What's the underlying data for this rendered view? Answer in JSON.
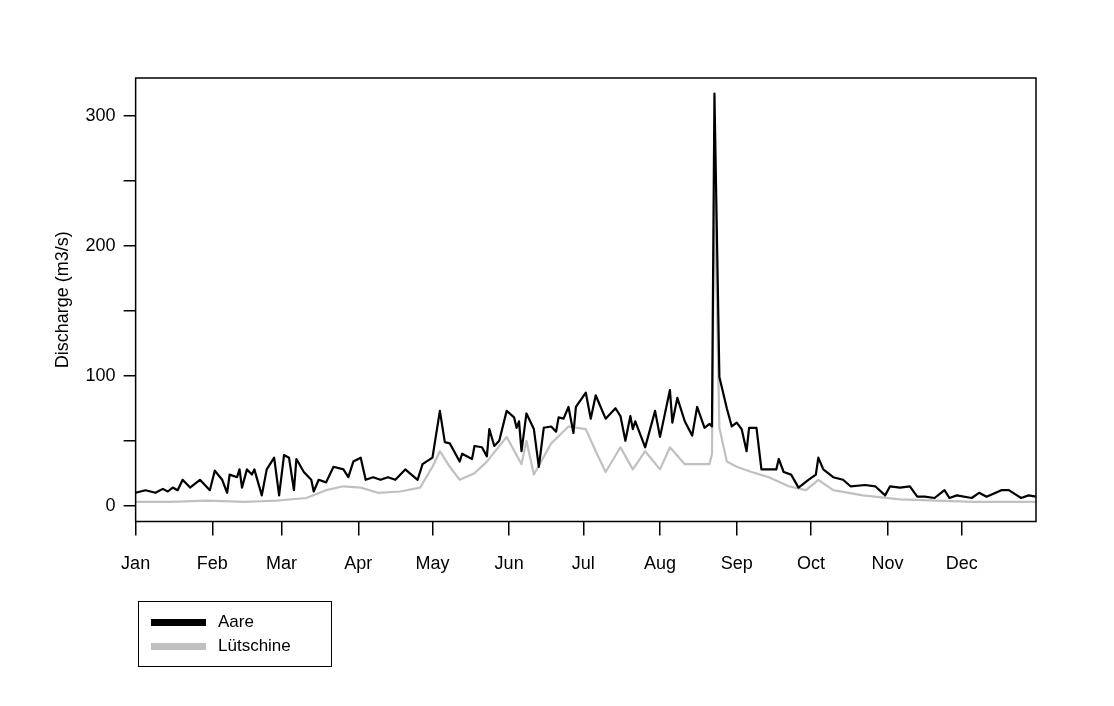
{
  "chart_data": {
    "type": "line",
    "ylabel": "Discharge (m3/s)",
    "xlim": [
      "--01-01",
      "--12-31"
    ],
    "ylim": [
      -12,
      329
    ],
    "xticks": [
      {
        "value": "--01-01",
        "label": "Jan"
      },
      {
        "value": "--02-01",
        "label": "Feb"
      },
      {
        "value": "--03-01",
        "label": "Mar"
      },
      {
        "value": "--04-01",
        "label": "Apr"
      },
      {
        "value": "--05-01",
        "label": "May"
      },
      {
        "value": "--06-01",
        "label": "Jun"
      },
      {
        "value": "--07-01",
        "label": "Jul"
      },
      {
        "value": "--08-01",
        "label": "Aug"
      },
      {
        "value": "--09-01",
        "label": "Sep"
      },
      {
        "value": "--10-01",
        "label": "Oct"
      },
      {
        "value": "--11-01",
        "label": "Nov"
      },
      {
        "value": "--12-01",
        "label": "Dec"
      }
    ],
    "yticks": [
      0,
      {
        "value": 50,
        "label": null
      },
      100,
      {
        "value": 150,
        "label": null
      },
      200,
      {
        "value": 250,
        "label": null
      },
      300
    ],
    "legend": "bottom left",
    "marker": "none",
    "line_style": "solid",
    "series": [
      {
        "name": "Aare",
        "color": "#000000",
        "x": [
          "--01-01",
          "--01-05",
          "--01-09",
          "--01-12",
          "--01-14",
          "--01-16",
          "--01-18",
          "--01-20",
          "--01-23",
          "--01-27",
          "--01-31",
          "--02-02",
          "--02-05",
          "--02-07",
          "--02-08",
          "--02-11",
          "--02-12",
          "--02-13",
          "--02-15",
          "--02-17",
          "--02-18",
          "--02-21",
          "--02-23",
          "--02-26",
          "--02-28",
          "--03-02",
          "--03-04",
          "--03-06",
          "--03-07",
          "--03-10",
          "--03-13",
          "--03-14",
          "--03-16",
          "--03-19",
          "--03-22",
          "--03-26",
          "--03-28",
          "--03-30",
          "--04-02",
          "--04-04",
          "--04-07",
          "--04-10",
          "--04-13",
          "--04-16",
          "--04-20",
          "--04-25",
          "--04-27",
          "--05-01",
          "--05-04",
          "--05-06",
          "--05-08",
          "--05-12",
          "--05-13",
          "--05-17",
          "--05-18",
          "--05-21",
          "--05-23",
          "--05-24",
          "--05-26",
          "--05-28",
          "--05-31",
          "--06-03",
          "--06-04",
          "--06-05",
          "--06-06",
          "--06-08",
          "--06-11",
          "--06-13",
          "--06-15",
          "--06-18",
          "--06-20",
          "--06-21",
          "--06-23",
          "--06-25",
          "--06-27",
          "--06-28",
          "--07-02",
          "--07-04",
          "--07-06",
          "--07-08",
          "--07-10",
          "--07-14",
          "--07-16",
          "--07-18",
          "--07-20",
          "--07-21",
          "--07-22",
          "--07-26",
          "--07-30",
          "--08-01",
          "--08-05",
          "--08-06",
          "--08-08",
          "--08-11",
          "--08-14",
          "--08-16",
          "--08-19",
          "--08-21",
          "--08-22",
          "--08-23",
          "--08-25",
          "--08-28",
          "--08-30",
          "--09-01",
          "--09-03",
          "--09-05",
          "--09-06",
          "--09-09",
          "--09-11",
          "--09-14",
          "--09-17",
          "--09-18",
          "--09-20",
          "--09-23",
          "--09-26",
          "--09-30",
          "--10-03",
          "--10-04",
          "--10-06",
          "--10-10",
          "--10-14",
          "--10-17",
          "--10-23",
          "--10-27",
          "--10-31",
          "--11-02",
          "--11-06",
          "--11-10",
          "--11-13",
          "--11-16",
          "--11-20",
          "--11-24",
          "--11-26",
          "--11-29",
          "--12-05",
          "--12-08",
          "--12-11",
          "--12-17",
          "--12-20",
          "--12-25",
          "--12-28",
          "--12-31"
        ],
        "values": [
          10,
          12,
          10,
          13,
          11,
          14,
          12,
          20,
          14,
          20,
          12,
          27,
          20,
          10,
          24,
          22,
          28,
          14,
          28,
          24,
          28,
          8,
          28,
          37,
          8,
          39,
          37,
          12,
          36,
          26,
          20,
          11,
          20,
          18,
          30,
          28,
          22,
          34,
          37,
          20,
          22,
          20,
          22,
          20,
          28,
          20,
          32,
          37,
          73,
          49,
          48,
          34,
          40,
          36,
          46,
          45,
          38,
          59,
          46,
          50,
          73,
          68,
          60,
          65,
          42,
          71,
          59,
          30,
          60,
          61,
          57,
          68,
          67,
          76,
          56,
          76,
          87,
          67,
          85,
          76,
          67,
          75,
          69,
          50,
          69,
          59,
          65,
          45,
          73,
          53,
          89,
          64,
          83,
          65,
          54,
          76,
          60,
          63,
          61,
          317,
          99,
          75,
          61,
          64,
          59,
          42,
          60,
          60,
          28,
          28,
          28,
          36,
          26,
          24,
          14,
          20,
          24,
          37,
          28,
          22,
          20,
          15,
          16,
          15,
          8,
          15,
          14,
          15,
          7,
          7,
          6,
          12,
          6,
          8,
          6,
          10,
          7,
          12,
          12,
          6,
          8,
          7
        ]
      },
      {
        "name": "Lütschine",
        "color": "#c0c0c0",
        "x": [
          "--01-01",
          "--01-15",
          "--01-30",
          "--02-14",
          "--02-27",
          "--03-11",
          "--03-19",
          "--03-26",
          "--04-02",
          "--04-09",
          "--04-18",
          "--04-26",
          "--05-01",
          "--05-04",
          "--05-08",
          "--05-12",
          "--05-18",
          "--05-23",
          "--05-31",
          "--06-06",
          "--06-08",
          "--06-11",
          "--06-18",
          "--06-25",
          "--07-02",
          "--07-06",
          "--07-10",
          "--07-16",
          "--07-21",
          "--07-26",
          "--08-01",
          "--08-05",
          "--08-11",
          "--08-16",
          "--08-21",
          "--08-22",
          "--08-23",
          "--08-25",
          "--08-28",
          "--09-01",
          "--09-07",
          "--09-14",
          "--09-22",
          "--09-29",
          "--10-04",
          "--10-10",
          "--10-22",
          "--11-06",
          "--11-21",
          "--12-06",
          "--12-31"
        ],
        "values": [
          3,
          3,
          4,
          3,
          4,
          6,
          12,
          15,
          14,
          10,
          11,
          14,
          30,
          42,
          30,
          20,
          25,
          34,
          53,
          32,
          50,
          24,
          48,
          61,
          59,
          42,
          26,
          45,
          28,
          42,
          28,
          45,
          32,
          32,
          32,
          40,
          250,
          60,
          34,
          30,
          26,
          22,
          15,
          12,
          20,
          12,
          8,
          5,
          4,
          3,
          3
        ]
      }
    ]
  }
}
